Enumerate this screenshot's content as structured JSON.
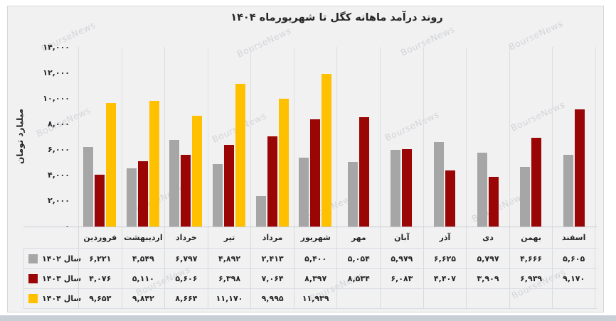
{
  "watermark_text": "BourseNews",
  "chart_data": {
    "type": "bar",
    "title": "روند درآمد ماهانه کگل تا شهریورماه  ۱۴۰۴",
    "ylabel": "میلیارد تومان",
    "xlabel": "",
    "ylim": [
      0,
      14000
    ],
    "ytick_values": [
      0,
      2000,
      4000,
      6000,
      8000,
      10000,
      12000,
      14000
    ],
    "ytick_labels": [
      "۰",
      "۲,۰۰۰",
      "۴,۰۰۰",
      "۶,۰۰۰",
      "۸,۰۰۰",
      "۱۰,۰۰۰",
      "۱۲,۰۰۰",
      "۱۴,۰۰۰"
    ],
    "grid": "vertical",
    "legend_position": "data-table-left",
    "categories": [
      "فروردین",
      "اردیبهشت",
      "خرداد",
      "تیر",
      "مرداد",
      "شهریور",
      "مهر",
      "آبان",
      "آذر",
      "دی",
      "بهمن",
      "اسفند"
    ],
    "series": [
      {
        "name": "سال ۱۴۰۲",
        "color": "#A6A6A6",
        "values": [
          6221,
          4549,
          6797,
          4892,
          2413,
          5400,
          5054,
          5979,
          6625,
          5797,
          4666,
          5605
        ],
        "labels": [
          "۶,۲۲۱",
          "۴,۵۴۹",
          "۶,۷۹۷",
          "۴,۸۹۲",
          "۲,۴۱۳",
          "۵,۴۰۰",
          "۵,۰۵۴",
          "۵,۹۷۹",
          "۶,۶۲۵",
          "۵,۷۹۷",
          "۴,۶۶۶",
          "۵,۶۰۵"
        ]
      },
      {
        "name": "سال ۱۴۰۳",
        "color": "#9A0606",
        "values": [
          4076,
          5110,
          5606,
          6398,
          7064,
          8397,
          8534,
          6083,
          4407,
          3909,
          6939,
          9170
        ],
        "labels": [
          "۴,۰۷۶",
          "۵,۱۱۰",
          "۵,۶۰۶",
          "۶,۳۹۸",
          "۷,۰۶۴",
          "۸,۳۹۷",
          "۸,۵۳۴",
          "۶,۰۸۳",
          "۴,۴۰۷",
          "۳,۹۰۹",
          "۶,۹۳۹",
          "۹,۱۷۰"
        ]
      },
      {
        "name": "سال ۱۴۰۴",
        "color": "#FFC000",
        "values": [
          9653,
          9842,
          8664,
          11170,
          9995,
          11939,
          null,
          null,
          null,
          null,
          null,
          null
        ],
        "labels": [
          "۹,۶۵۳",
          "۹,۸۴۲",
          "۸,۶۶۴",
          "۱۱,۱۷۰",
          "۹,۹۹۵",
          "۱۱,۹۳۹",
          "",
          "",
          "",
          "",
          "",
          ""
        ]
      }
    ]
  }
}
